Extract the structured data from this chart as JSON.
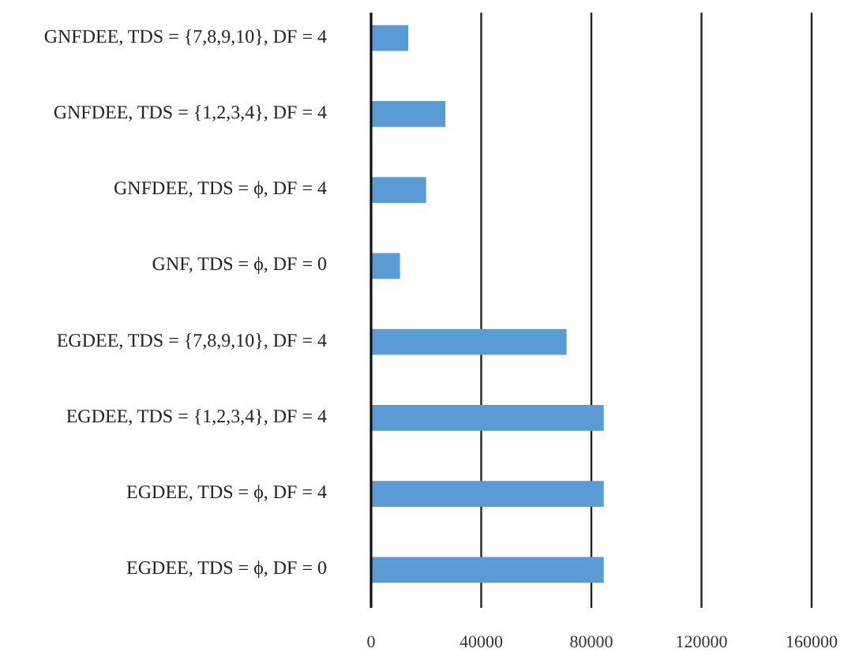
{
  "chart_data": {
    "type": "bar",
    "orientation": "horizontal",
    "categories": [
      "GNFDEE, TDS = {7,8,9,10}, DF = 4",
      "GNFDEE, TDS = {1,2,3,4}, DF = 4",
      "GNFDEE, TDS = ϕ, DF = 4",
      "GNF, TDS = ϕ, DF = 0",
      "EGDEE, TDS = {7,8,9,10}, DF = 4",
      "EGDEE, TDS = {1,2,3,4}, DF = 4",
      "EGDEE, TDS = ϕ, DF = 4",
      "EGDEE, TDS = ϕ, DF = 0"
    ],
    "values": [
      13500,
      27000,
      20000,
      10500,
      71000,
      84500,
      84500,
      84500
    ],
    "color": "#5b9bd5",
    "xlim": [
      0,
      160000
    ],
    "xticks": [
      0,
      40000,
      80000,
      120000,
      160000
    ],
    "grid": "x"
  }
}
